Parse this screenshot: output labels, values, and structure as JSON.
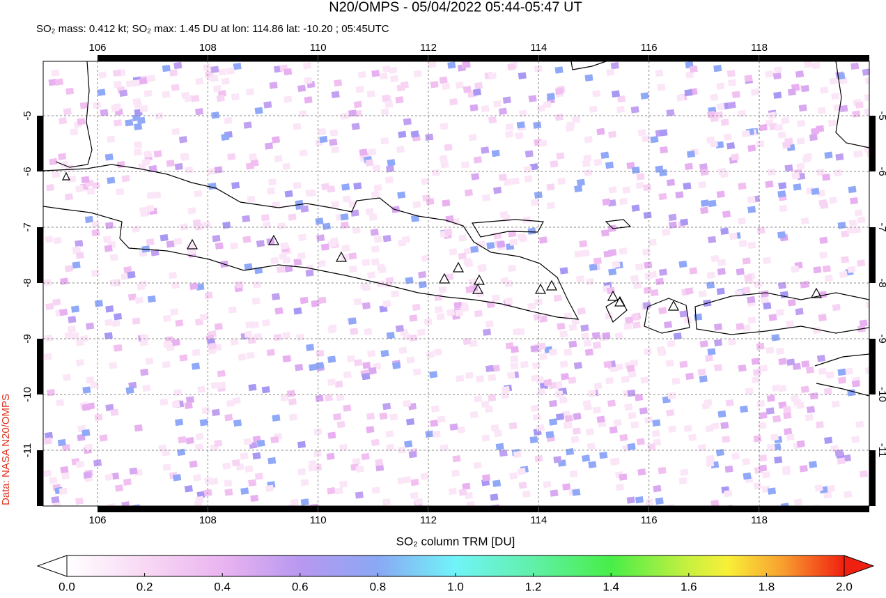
{
  "map": {
    "title": "N20/OMPS - 05/04/2022 05:44-05:47 UT",
    "subtitle": "SO₂ mass: 0.412 kt; SO₂ max: 1.45 DU at lon: 114.86 lat: -10.20 ; 05:45UTC",
    "lon_ticks": [
      106,
      108,
      110,
      112,
      114,
      116,
      118
    ],
    "lat_ticks": [
      -5,
      -6,
      -7,
      -8,
      -9,
      -10,
      -11
    ],
    "colorbar": {
      "label": "SO₂ column TRM [DU]",
      "ticks": [
        {
          "value": 0,
          "label": "0.0"
        },
        {
          "value": 0.2,
          "label": "0.2"
        },
        {
          "value": 0.4,
          "label": "0.4"
        },
        {
          "value": 0.6,
          "label": "0.6"
        },
        {
          "value": 0.8,
          "label": "0.8"
        },
        {
          "value": 1,
          "label": "1.0"
        },
        {
          "value": 1.2,
          "label": "1.2"
        },
        {
          "value": 1.4,
          "label": "1.4"
        },
        {
          "value": 1.6,
          "label": "1.6"
        },
        {
          "value": 1.8,
          "label": "1.8"
        },
        {
          "value": 2,
          "label": "2.0"
        }
      ]
    },
    "credit": "Data: NASA N20/OMPS"
  }
}
